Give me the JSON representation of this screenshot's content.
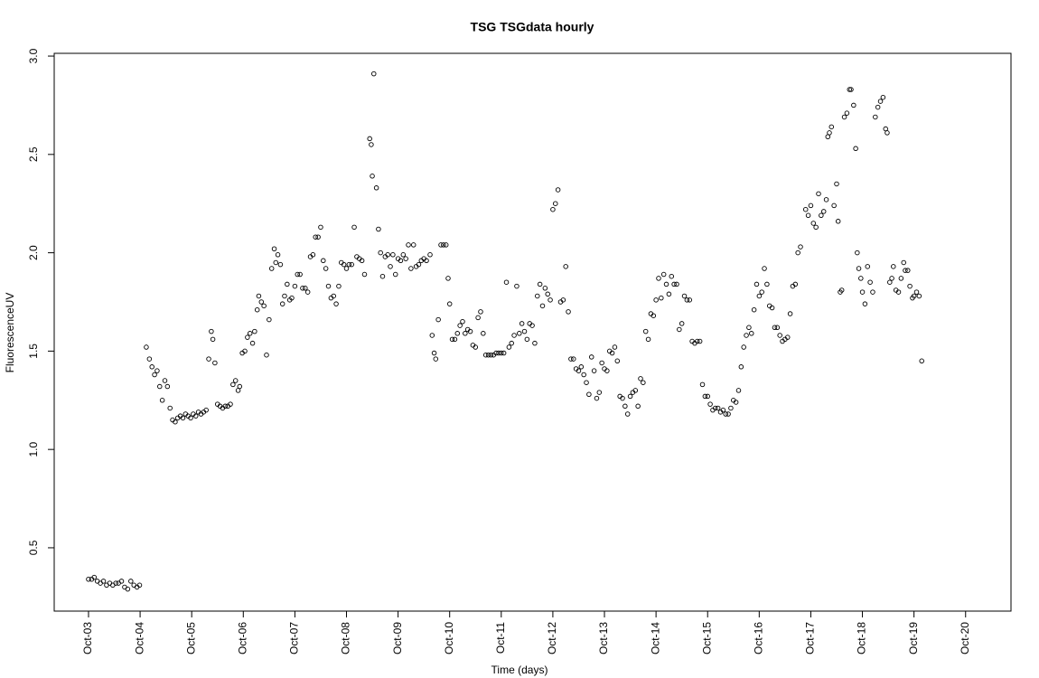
{
  "chart_data": {
    "type": "scatter",
    "title": "TSG TSGdata hourly",
    "x_label": "Time (days)",
    "y_label": "FluorescenceUV",
    "xlim": [
      -0.665,
      17.88
    ],
    "ylim": [
      0.178,
      3.014
    ],
    "xticks": [
      {
        "value": 0,
        "label": "Oct-03"
      },
      {
        "value": 1,
        "label": "Oct-04"
      },
      {
        "value": 2,
        "label": "Oct-05"
      },
      {
        "value": 3,
        "label": "Oct-06"
      },
      {
        "value": 4,
        "label": "Oct-07"
      },
      {
        "value": 5,
        "label": "Oct-08"
      },
      {
        "value": 6,
        "label": "Oct-09"
      },
      {
        "value": 7,
        "label": "Oct-10"
      },
      {
        "value": 8,
        "label": "Oct-11"
      },
      {
        "value": 9,
        "label": "Oct-12"
      },
      {
        "value": 10,
        "label": "Oct-13"
      },
      {
        "value": 11,
        "label": "Oct-14"
      },
      {
        "value": 12,
        "label": "Oct-15"
      },
      {
        "value": 13,
        "label": "Oct-16"
      },
      {
        "value": 14,
        "label": "Oct-17"
      },
      {
        "value": 15,
        "label": "Oct-18"
      },
      {
        "value": 16,
        "label": "Oct-19"
      },
      {
        "value": 17,
        "label": "Oct-20"
      }
    ],
    "yticks": [
      0.5,
      {
        "value": 1,
        "label": "1.0"
      },
      1.5,
      {
        "value": 2,
        "label": "2.0"
      },
      2.5,
      {
        "value": 3,
        "label": "3.0"
      }
    ],
    "color": "#000000",
    "x": [
      0.0,
      0.06,
      0.11,
      0.17,
      0.23,
      0.29,
      0.35,
      0.41,
      0.47,
      0.53,
      0.58,
      0.64,
      0.7,
      0.76,
      0.82,
      0.88,
      0.94,
      0.99,
      1.12,
      1.18,
      1.23,
      1.28,
      1.33,
      1.38,
      1.43,
      1.48,
      1.53,
      1.58,
      1.63,
      1.68,
      1.73,
      1.78,
      1.83,
      1.88,
      1.93,
      1.98,
      2.03,
      2.08,
      2.13,
      2.18,
      2.23,
      2.28,
      2.33,
      2.38,
      2.41,
      2.45,
      2.5,
      2.55,
      2.6,
      2.65,
      2.7,
      2.75,
      2.8,
      2.85,
      2.9,
      2.93,
      2.98,
      3.03,
      3.08,
      3.13,
      3.18,
      3.22,
      3.27,
      3.3,
      3.35,
      3.4,
      3.45,
      3.5,
      3.55,
      3.6,
      3.63,
      3.67,
      3.72,
      3.76,
      3.8,
      3.85,
      3.9,
      3.94,
      4.0,
      4.05,
      4.1,
      4.15,
      4.2,
      4.25,
      4.3,
      4.35,
      4.4,
      4.45,
      4.5,
      4.55,
      4.6,
      4.65,
      4.7,
      4.75,
      4.8,
      4.85,
      4.9,
      4.95,
      5.0,
      5.05,
      5.1,
      5.15,
      5.2,
      5.25,
      5.3,
      5.35,
      5.45,
      5.48,
      5.5,
      5.53,
      5.58,
      5.62,
      5.66,
      5.7,
      5.75,
      5.8,
      5.85,
      5.9,
      5.95,
      6.0,
      6.05,
      6.1,
      6.15,
      6.2,
      6.25,
      6.3,
      6.35,
      6.4,
      6.45,
      6.5,
      6.55,
      6.62,
      6.66,
      6.7,
      6.73,
      6.78,
      6.83,
      6.88,
      6.93,
      6.97,
      7.0,
      7.05,
      7.1,
      7.15,
      7.2,
      7.25,
      7.3,
      7.35,
      7.4,
      7.45,
      7.5,
      7.55,
      7.6,
      7.65,
      7.7,
      7.75,
      7.8,
      7.85,
      7.9,
      7.95,
      8.0,
      8.05,
      8.1,
      8.15,
      8.2,
      8.25,
      8.3,
      8.35,
      8.4,
      8.45,
      8.5,
      8.55,
      8.6,
      8.65,
      8.7,
      8.75,
      8.8,
      8.85,
      8.9,
      8.95,
      9.0,
      9.05,
      9.1,
      9.15,
      9.2,
      9.25,
      9.3,
      9.35,
      9.4,
      9.45,
      9.5,
      9.55,
      9.6,
      9.65,
      9.7,
      9.75,
      9.8,
      9.85,
      9.9,
      9.95,
      10.0,
      10.05,
      10.1,
      10.15,
      10.2,
      10.25,
      10.3,
      10.35,
      10.4,
      10.45,
      10.5,
      10.55,
      10.6,
      10.65,
      10.7,
      10.75,
      10.8,
      10.85,
      10.9,
      10.95,
      11.0,
      11.05,
      11.1,
      11.15,
      11.2,
      11.25,
      11.3,
      11.35,
      11.4,
      11.45,
      11.5,
      11.55,
      11.6,
      11.65,
      11.7,
      11.75,
      11.8,
      11.85,
      11.9,
      11.95,
      12.0,
      12.05,
      12.1,
      12.15,
      12.2,
      12.25,
      12.3,
      12.35,
      12.4,
      12.45,
      12.5,
      12.55,
      12.6,
      12.65,
      12.7,
      12.75,
      12.8,
      12.85,
      12.9,
      12.95,
      13.0,
      13.05,
      13.1,
      13.15,
      13.2,
      13.25,
      13.3,
      13.35,
      13.4,
      13.45,
      13.5,
      13.55,
      13.6,
      13.65,
      13.7,
      13.75,
      13.8,
      13.9,
      13.95,
      14.0,
      14.05,
      14.1,
      14.15,
      14.2,
      14.25,
      14.3,
      14.33,
      14.36,
      14.4,
      14.45,
      14.5,
      14.53,
      14.57,
      14.6,
      14.65,
      14.7,
      14.75,
      14.78,
      14.83,
      14.87,
      14.9,
      14.93,
      14.97,
      15.0,
      15.05,
      15.1,
      15.15,
      15.2,
      15.25,
      15.3,
      15.35,
      15.4,
      15.45,
      15.48,
      15.53,
      15.57,
      15.6,
      15.65,
      15.7,
      15.75,
      15.8,
      15.83,
      15.88,
      15.92,
      15.97,
      16.0,
      16.05,
      16.1,
      16.15
    ],
    "values": [
      0.34,
      0.34,
      0.35,
      0.33,
      0.32,
      0.33,
      0.31,
      0.32,
      0.31,
      0.32,
      0.32,
      0.33,
      0.3,
      0.29,
      0.33,
      0.31,
      0.3,
      0.31,
      1.52,
      1.46,
      1.42,
      1.38,
      1.4,
      1.32,
      1.25,
      1.35,
      1.32,
      1.21,
      1.15,
      1.14,
      1.16,
      1.17,
      1.16,
      1.18,
      1.17,
      1.16,
      1.18,
      1.17,
      1.19,
      1.18,
      1.19,
      1.2,
      1.46,
      1.6,
      1.56,
      1.44,
      1.23,
      1.22,
      1.21,
      1.22,
      1.22,
      1.23,
      1.33,
      1.35,
      1.3,
      1.32,
      1.49,
      1.5,
      1.57,
      1.59,
      1.54,
      1.6,
      1.71,
      1.78,
      1.75,
      1.73,
      1.48,
      1.66,
      1.92,
      2.02,
      1.95,
      1.99,
      1.94,
      1.74,
      1.78,
      1.84,
      1.76,
      1.77,
      1.83,
      1.89,
      1.89,
      1.82,
      1.82,
      1.8,
      1.98,
      1.99,
      2.08,
      2.08,
      2.13,
      1.96,
      1.92,
      1.83,
      1.77,
      1.78,
      1.74,
      1.83,
      1.95,
      1.94,
      1.92,
      1.94,
      1.94,
      2.13,
      1.98,
      1.97,
      1.96,
      1.89,
      2.58,
      2.55,
      2.39,
      2.91,
      2.33,
      2.12,
      2.0,
      1.88,
      1.98,
      1.99,
      1.93,
      1.99,
      1.89,
      1.97,
      1.96,
      1.99,
      1.97,
      2.04,
      1.92,
      2.04,
      1.93,
      1.94,
      1.96,
      1.97,
      1.96,
      1.99,
      1.58,
      1.49,
      1.46,
      1.66,
      2.04,
      2.04,
      2.04,
      1.87,
      1.74,
      1.56,
      1.56,
      1.59,
      1.63,
      1.65,
      1.59,
      1.61,
      1.6,
      1.53,
      1.52,
      1.67,
      1.7,
      1.59,
      1.48,
      1.48,
      1.48,
      1.48,
      1.49,
      1.49,
      1.49,
      1.49,
      1.85,
      1.52,
      1.54,
      1.58,
      1.83,
      1.59,
      1.64,
      1.6,
      1.56,
      1.64,
      1.63,
      1.54,
      1.78,
      1.84,
      1.73,
      1.82,
      1.79,
      1.76,
      2.22,
      2.25,
      2.32,
      1.75,
      1.76,
      1.93,
      1.7,
      1.46,
      1.46,
      1.41,
      1.4,
      1.42,
      1.38,
      1.34,
      1.28,
      1.47,
      1.4,
      1.26,
      1.29,
      1.44,
      1.41,
      1.4,
      1.5,
      1.49,
      1.52,
      1.45,
      1.27,
      1.26,
      1.22,
      1.18,
      1.27,
      1.29,
      1.3,
      1.22,
      1.36,
      1.34,
      1.6,
      1.56,
      1.69,
      1.68,
      1.76,
      1.87,
      1.77,
      1.89,
      1.84,
      1.79,
      1.88,
      1.84,
      1.84,
      1.61,
      1.64,
      1.78,
      1.76,
      1.76,
      1.55,
      1.54,
      1.55,
      1.55,
      1.33,
      1.27,
      1.27,
      1.23,
      1.2,
      1.21,
      1.21,
      1.19,
      1.2,
      1.18,
      1.18,
      1.21,
      1.25,
      1.24,
      1.3,
      1.42,
      1.52,
      1.58,
      1.62,
      1.59,
      1.71,
      1.84,
      1.78,
      1.8,
      1.92,
      1.84,
      1.73,
      1.72,
      1.62,
      1.62,
      1.58,
      1.55,
      1.56,
      1.57,
      1.69,
      1.83,
      1.84,
      2.0,
      2.03,
      2.22,
      2.19,
      2.24,
      2.15,
      2.13,
      2.3,
      2.19,
      2.21,
      2.27,
      2.59,
      2.61,
      2.64,
      2.24,
      2.35,
      2.16,
      1.8,
      1.81,
      2.69,
      2.71,
      2.83,
      2.83,
      2.75,
      2.53,
      2.0,
      1.92,
      1.87,
      1.8,
      1.74,
      1.93,
      1.85,
      1.8,
      2.69,
      2.74,
      2.77,
      2.79,
      2.63,
      2.61,
      1.85,
      1.87,
      1.93,
      1.81,
      1.8,
      1.87,
      1.95,
      1.91,
      1.91,
      1.83,
      1.77,
      1.78,
      1.8,
      1.78,
      1.45
    ]
  }
}
